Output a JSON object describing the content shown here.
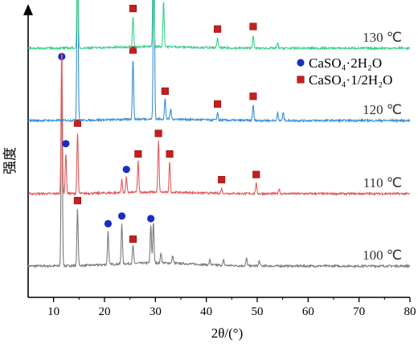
{
  "chart_data": {
    "type": "line",
    "title": "",
    "xlabel": "2θ/(°)",
    "ylabel": "强度",
    "xlim": [
      5,
      80
    ],
    "xticks": [
      10,
      20,
      30,
      40,
      50,
      60,
      70,
      80
    ],
    "y_ticks_shown": false,
    "grid": false,
    "legend_placement": "right",
    "legend": [
      {
        "label": "CaSO₄·2H₂O",
        "marker": "circle",
        "color": "#1a2fbf"
      },
      {
        "label": "CaSO₄·1/2H₂O",
        "marker": "square",
        "color": "#c81e1e"
      }
    ],
    "series": [
      {
        "name": "100 ℃",
        "color": "#7a7a7a",
        "baseline_level": 0.0,
        "peaks": [
          {
            "x": 11.6,
            "h": 0.78,
            "phase": "dihydrate"
          },
          {
            "x": 14.7,
            "h": 0.22,
            "phase": "hemihydrate"
          },
          {
            "x": 20.7,
            "h": 0.13,
            "phase": "dihydrate"
          },
          {
            "x": 23.4,
            "h": 0.16,
            "phase": "dihydrate"
          },
          {
            "x": 25.6,
            "h": 0.07,
            "phase": "hemihydrate"
          },
          {
            "x": 29.1,
            "h": 0.15,
            "phase": "dihydrate"
          },
          {
            "x": 29.6,
            "h": 0.16
          },
          {
            "x": 31.1,
            "h": 0.04
          },
          {
            "x": 33.4,
            "h": 0.03
          },
          {
            "x": 40.7,
            "h": 0.02
          },
          {
            "x": 43.4,
            "h": 0.02
          },
          {
            "x": 47.9,
            "h": 0.03
          },
          {
            "x": 50.4,
            "h": 0.02
          }
        ]
      },
      {
        "name": "110 ℃",
        "color": "#e05a5a",
        "baseline_level": 1.0,
        "peaks": [
          {
            "x": 11.6,
            "h": 0.58
          },
          {
            "x": 12.4,
            "h": 0.16,
            "phase": "dihydrate"
          },
          {
            "x": 14.7,
            "h": 0.24,
            "phase": "hemihydrate"
          },
          {
            "x": 23.4,
            "h": 0.05
          },
          {
            "x": 24.3,
            "h": 0.06,
            "phase": "dihydrate"
          },
          {
            "x": 26.6,
            "h": 0.12,
            "phase": "hemihydrate"
          },
          {
            "x": 30.6,
            "h": 0.2,
            "phase": "hemihydrate"
          },
          {
            "x": 32.8,
            "h": 0.12,
            "phase": "hemihydrate"
          },
          {
            "x": 43.0,
            "h": 0.02,
            "phase": "hemihydrate"
          },
          {
            "x": 49.8,
            "h": 0.04,
            "phase": "hemihydrate"
          },
          {
            "x": 54.3,
            "h": 0.02
          }
        ]
      },
      {
        "name": "120 ℃",
        "color": "#3a8fd6",
        "baseline_level": 2.0,
        "peaks": [
          {
            "x": 14.7,
            "h": 0.75,
            "phase": "hemihydrate"
          },
          {
            "x": 25.6,
            "h": 0.24,
            "phase": "hemihydrate"
          },
          {
            "x": 29.7,
            "h": 0.8
          },
          {
            "x": 31.9,
            "h": 0.08,
            "phase": "hemihydrate"
          },
          {
            "x": 33.0,
            "h": 0.04
          },
          {
            "x": 42.2,
            "h": 0.03,
            "phase": "hemihydrate"
          },
          {
            "x": 49.2,
            "h": 0.06,
            "phase": "hemihydrate"
          },
          {
            "x": 54.0,
            "h": 0.03
          },
          {
            "x": 55.1,
            "h": 0.03
          }
        ]
      },
      {
        "name": "130 ℃",
        "color": "#3dcf8a",
        "baseline_level": 3.0,
        "peaks": [
          {
            "x": 14.7,
            "h": 0.38,
            "phase": "hemihydrate"
          },
          {
            "x": 25.6,
            "h": 0.12,
            "phase": "hemihydrate"
          },
          {
            "x": 29.6,
            "h": 0.48,
            "phase": "dihydrate"
          },
          {
            "x": 31.6,
            "h": 0.18,
            "phase": "dihydrate"
          },
          {
            "x": 42.2,
            "h": 0.04,
            "phase": "hemihydrate"
          },
          {
            "x": 49.2,
            "h": 0.05,
            "phase": "hemihydrate"
          },
          {
            "x": 54.0,
            "h": 0.02
          }
        ]
      }
    ]
  }
}
